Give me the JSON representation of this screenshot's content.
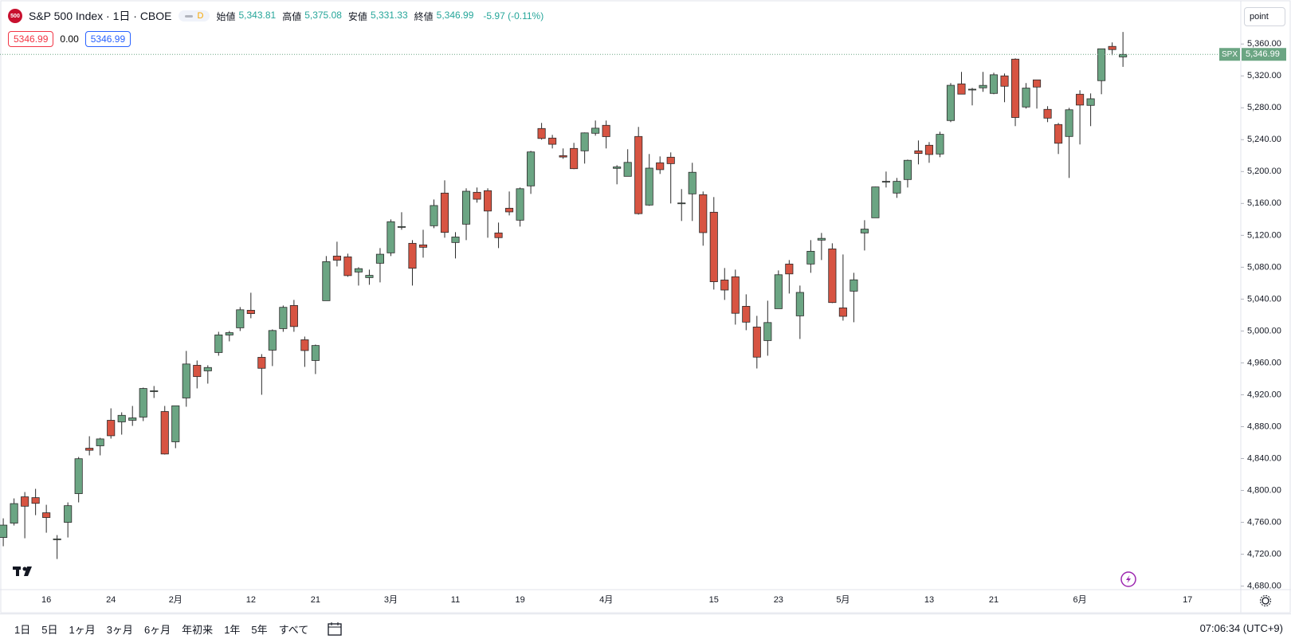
{
  "header": {
    "logo": "500",
    "title": "S&P 500 Index · 1日 · CBOE",
    "interval_badge": "D",
    "ohlc": [
      {
        "label": "始値",
        "value": "5,343.81"
      },
      {
        "label": "高値",
        "value": "5,375.08"
      },
      {
        "label": "安値",
        "value": "5,331.33"
      },
      {
        "label": "終値",
        "value": "5,346.99"
      }
    ],
    "change": "-5.97 (-0.11%)",
    "price_boxes": [
      "5346.99",
      "0.00",
      "5346.99"
    ]
  },
  "axis_unit": "point",
  "toolbar": {
    "ranges": [
      "1日",
      "5日",
      "1ヶ月",
      "3ヶ月",
      "6ヶ月",
      "年初来",
      "1年",
      "5年",
      "すべて"
    ],
    "clock": "07:06:34 (UTC+9)"
  },
  "chart_data": {
    "type": "candlestick",
    "symbol": "SPX",
    "last_price": {
      "value": 5346.99,
      "label": "5,346.99"
    },
    "up_color": "#6ba583",
    "down_color": "#d75442",
    "outline_color": "#2a2a2a",
    "categories": [
      null,
      null,
      null,
      null,
      "16",
      null,
      null,
      null,
      null,
      null,
      "24",
      null,
      null,
      null,
      null,
      null,
      "2月",
      null,
      null,
      null,
      null,
      null,
      null,
      "12",
      null,
      null,
      null,
      null,
      null,
      "21",
      null,
      null,
      null,
      null,
      null,
      null,
      "3月",
      null,
      null,
      null,
      null,
      null,
      "11",
      null,
      null,
      null,
      null,
      null,
      "19",
      null,
      null,
      null,
      null,
      null,
      null,
      null,
      "4月",
      null,
      null,
      null,
      null,
      null,
      null,
      null,
      null,
      null,
      "15",
      null,
      null,
      null,
      null,
      null,
      "23",
      null,
      null,
      null,
      null,
      null,
      "5月",
      null,
      null,
      null,
      null,
      null,
      null,
      null,
      "13",
      null,
      null,
      null,
      null,
      null,
      "21",
      null,
      null,
      null,
      null,
      null,
      null,
      null,
      "6月",
      null,
      null,
      null,
      null,
      null,
      null,
      null,
      null,
      null,
      "17"
    ],
    "open": [
      4741,
      4759,
      4792,
      4791,
      4772,
      4739,
      4760,
      4796,
      4853,
      4856,
      4888,
      4886,
      4888,
      4892,
      4925,
      4899,
      4861,
      4916,
      4957,
      4950,
      4973,
      4995,
      5004,
      5026,
      4967,
      4976,
      5003,
      5032,
      4989,
      4963,
      5038,
      5094,
      5093,
      5074,
      5067,
      5085,
      5098,
      5131,
      5110,
      5108,
      5132,
      5173,
      5111,
      5134,
      5174,
      5176,
      5123,
      5154,
      5139,
      5182,
      5254,
      5242,
      5220,
      5229,
      5226,
      5248,
      5258,
      5204,
      5194,
      5244,
      5158,
      5211,
      5218,
      5160,
      5172,
      5171,
      5149,
      5064,
      5068,
      5031,
      5005,
      4988,
      5028,
      5084,
      5019,
      5084,
      5114,
      5103,
      5029,
      5050,
      5123,
      5142,
      5187,
      5173,
      5190,
      5226,
      5233,
      5222,
      5264,
      5310,
      5303,
      5305,
      5298,
      5320,
      5341,
      5281,
      5315,
      5278,
      5259,
      5244,
      5297,
      5283,
      5314,
      5357,
      5343.81,
      null,
      null,
      null,
      null,
      null,
      null
    ],
    "high": [
      4765,
      4790,
      4798,
      4802,
      4782,
      4744,
      4785,
      4842,
      4868,
      4866,
      4903,
      4898,
      4906,
      4929,
      4931,
      4906,
      4906,
      4975,
      4963,
      4957,
      4999,
      5000,
      5030,
      5048,
      4971,
      5002,
      5032,
      5039,
      4993,
      4983,
      5094,
      5112,
      5097,
      5080,
      5077,
      5104,
      5140,
      5149,
      5114,
      5127,
      5165,
      5189,
      5124,
      5179,
      5180,
      5179,
      5136,
      5175,
      5180,
      5226,
      5261,
      5246,
      5229,
      5236,
      5249,
      5264,
      5264,
      5208,
      5228,
      5256,
      5222,
      5219,
      5224,
      5178,
      5211,
      5175,
      5168,
      5079,
      5077,
      5046,
      5019,
      5038,
      5076,
      5089,
      5057,
      5114,
      5123,
      5110,
      5096,
      5073,
      5139,
      5181,
      5200,
      5192,
      5215,
      5239,
      5237,
      5250,
      5311,
      5325,
      5305,
      5325,
      5324,
      5323,
      5342,
      5311,
      5315,
      5282,
      5261,
      5280,
      5302,
      5298,
      5354,
      5362,
      5375.08,
      null,
      null,
      null,
      null,
      null,
      null
    ],
    "low": [
      4730,
      4756,
      4740,
      4769,
      4747,
      4714,
      4741,
      4785,
      4844,
      4844,
      4865,
      4870,
      4881,
      4887,
      4916,
      4845,
      4853,
      4905,
      4928,
      4934,
      4969,
      4987,
      5000,
      5016,
      4920,
      4956,
      4999,
      4999,
      4955,
      4946,
      5038,
      5081,
      5068,
      5057,
      5058,
      5061,
      5094,
      5127,
      5057,
      5092,
      5129,
      5117,
      5091,
      5114,
      5161,
      5117,
      5104,
      5145,
      5131,
      5172,
      5240,
      5229,
      5216,
      5203,
      5210,
      5245,
      5229,
      5184,
      5194,
      5146,
      5157,
      5197,
      5160,
      5138,
      5138,
      5107,
      5052,
      5039,
      5008,
      5001,
      4953,
      4969,
      5028,
      5047,
      4990,
      5073,
      5089,
      5035,
      5013,
      5011,
      5101,
      5142,
      5180,
      5167,
      5180,
      5209,
      5211,
      5218,
      5262,
      5297,
      5283,
      5300,
      5297,
      5287,
      5257,
      5279,
      5279,
      5262,
      5222,
      5192,
      5234,
      5257,
      5297,
      5346,
      5331.33,
      null,
      null,
      null,
      null,
      null,
      null
    ],
    "close": [
      4756.5,
      4783.5,
      4780.2,
      4783.8,
      4766,
      4739.2,
      4780.9,
      4839.8,
      4850.4,
      4864.6,
      4868.6,
      4894.2,
      4891,
      4927.9,
      4925,
      4845.7,
      4906.2,
      4958.6,
      4942.8,
      4954.2,
      4995.1,
      4997.9,
      5026.6,
      5021.8,
      4953.2,
      5000.6,
      5029.7,
      5005.6,
      4975.5,
      4981.8,
      5087,
      5088.8,
      5069.5,
      5078.2,
      5069.8,
      5096.3,
      5137.1,
      5131,
      5078.7,
      5105,
      5157.4,
      5123.7,
      5117.9,
      5175.3,
      5165.3,
      5150.5,
      5117.1,
      5149.4,
      5178.5,
      5224.6,
      5241.5,
      5234.2,
      5218.2,
      5203.6,
      5248.5,
      5254.4,
      5243.8,
      5205.8,
      5211.5,
      5147.2,
      5204.3,
      5202.4,
      5209.9,
      5160.6,
      5199.1,
      5123.4,
      5061.8,
      5051.4,
      5022.2,
      5011.1,
      4967.2,
      5010.6,
      5070.6,
      5071.6,
      5048.4,
      5100,
      5116.2,
      5035.7,
      5018.4,
      5064.2,
      5127.8,
      5180.7,
      5187.7,
      5187.7,
      5214.1,
      5222.7,
      5221.4,
      5246.7,
      5308.2,
      5297.1,
      5303.3,
      5308.1,
      5321.4,
      5307,
      5267.8,
      5304.7,
      5306,
      5267,
      5235.5,
      5277.5,
      5283.4,
      5291.3,
      5354,
      5353,
      5346.99,
      null,
      null,
      null,
      null,
      null,
      null
    ],
    "ylim": [
      4676,
      5410
    ],
    "yticks": [
      {
        "value": 4680,
        "label": "4,680.00"
      },
      {
        "value": 4720,
        "label": "4,720.00"
      },
      {
        "value": 4760,
        "label": "4,760.00"
      },
      {
        "value": 4800,
        "label": "4,800.00"
      },
      {
        "value": 4840,
        "label": "4,840.00"
      },
      {
        "value": 4880,
        "label": "4,880.00"
      },
      {
        "value": 4920,
        "label": "4,920.00"
      },
      {
        "value": 4960,
        "label": "4,960.00"
      },
      {
        "value": 5000,
        "label": "5,000.00"
      },
      {
        "value": 5040,
        "label": "5,040.00"
      },
      {
        "value": 5080,
        "label": "5,080.00"
      },
      {
        "value": 5120,
        "label": "5,120.00"
      },
      {
        "value": 5160,
        "label": "5,160.00"
      },
      {
        "value": 5200,
        "label": "5,200.00"
      },
      {
        "value": 5240,
        "label": "5,240.00"
      },
      {
        "value": 5280,
        "label": "5,280.00"
      },
      {
        "value": 5320,
        "label": "5,320.00"
      },
      {
        "value": 5360,
        "label": "5,360.00"
      }
    ],
    "grid": false
  }
}
